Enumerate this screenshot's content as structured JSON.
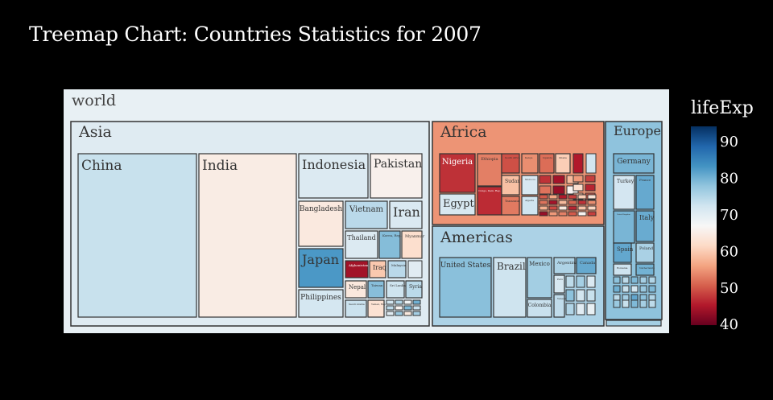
{
  "title": "Treemap Chart: Countries Statistics for 2007",
  "colorbar": {
    "title": "lifeExp",
    "ticks": [
      40,
      50,
      60,
      70,
      80,
      90
    ],
    "range": [
      39.6,
      94
    ],
    "scale": [
      "#67001f",
      "#b2182b",
      "#d6604d",
      "#f4a582",
      "#fddbc7",
      "#f7f7f7",
      "#d1e5f0",
      "#92c5de",
      "#4393c3",
      "#2166ac",
      "#053061"
    ]
  },
  "chart_data": {
    "type": "treemap",
    "root": {
      "name": "world",
      "value": 68.9
    },
    "continents": [
      {
        "name": "Asia",
        "value": 70.3
      },
      {
        "name": "Africa",
        "value": 54.6
      },
      {
        "name": "Americas",
        "value": 75.4
      },
      {
        "name": "Europe",
        "value": 77.9
      }
    ],
    "countries": [
      {
        "name": "China",
        "continent": "Asia",
        "value": 73
      },
      {
        "name": "India",
        "continent": "Asia",
        "value": 64.7
      },
      {
        "name": "Indonesia",
        "continent": "Asia",
        "value": 70.7
      },
      {
        "name": "Pakistan",
        "continent": "Asia",
        "value": 65.5
      },
      {
        "name": "Bangladesh",
        "continent": "Asia",
        "value": 64.1
      },
      {
        "name": "Vietnam",
        "continent": "Asia",
        "value": 74.2
      },
      {
        "name": "Iran",
        "continent": "Asia",
        "value": 71
      },
      {
        "name": "Thailand",
        "continent": "Asia",
        "value": 70.6
      },
      {
        "name": "Korea, Rep.",
        "continent": "Asia",
        "value": 78.6
      },
      {
        "name": "Myanmar",
        "continent": "Asia",
        "value": 62.1
      },
      {
        "name": "Japan",
        "continent": "Asia",
        "value": 82.6
      },
      {
        "name": "Afghanistan",
        "continent": "Asia",
        "value": 43.8
      },
      {
        "name": "Iraq",
        "continent": "Asia",
        "value": 59.5
      },
      {
        "name": "Malaysia",
        "continent": "Asia",
        "value": 74.2
      },
      {
        "name": "Nepal",
        "continent": "Asia",
        "value": 63.8
      },
      {
        "name": "Taiwan",
        "continent": "Asia",
        "value": 78.4
      },
      {
        "name": "Sri Lanka",
        "continent": "Asia",
        "value": 72.4
      },
      {
        "name": "Syria",
        "continent": "Asia",
        "value": 74.1
      },
      {
        "name": "Philippines",
        "continent": "Asia",
        "value": 71.7
      },
      {
        "name": "Saudi Arabia",
        "continent": "Asia",
        "value": 72.8
      },
      {
        "name": "Yemen, Rep.",
        "continent": "Asia",
        "value": 62.7
      },
      {
        "name": "Nigeria",
        "continent": "Africa",
        "value": 46.9
      },
      {
        "name": "Egypt",
        "continent": "Africa",
        "value": 71.3
      },
      {
        "name": "Ethiopia",
        "continent": "Africa",
        "value": 52.9
      },
      {
        "name": "Congo, Dem. Rep.",
        "continent": "Africa",
        "value": 46.5
      },
      {
        "name": "South Africa",
        "continent": "Africa",
        "value": 49.3
      },
      {
        "name": "Sudan",
        "continent": "Africa",
        "value": 58.6
      },
      {
        "name": "Tanzania",
        "continent": "Africa",
        "value": 52.5
      },
      {
        "name": "Kenya",
        "continent": "Africa",
        "value": 54.1
      },
      {
        "name": "Morocco",
        "continent": "Africa",
        "value": 71.2
      },
      {
        "name": "Algeria",
        "continent": "Africa",
        "value": 72.3
      },
      {
        "name": "Uganda",
        "continent": "Africa",
        "value": 51.5
      },
      {
        "name": "Ghana",
        "continent": "Africa",
        "value": 60
      },
      {
        "name": "United States",
        "continent": "Americas",
        "value": 78.2
      },
      {
        "name": "Brazil",
        "continent": "Americas",
        "value": 72.4
      },
      {
        "name": "Mexico",
        "continent": "Americas",
        "value": 76.2
      },
      {
        "name": "Colombia",
        "continent": "Americas",
        "value": 72.9
      },
      {
        "name": "Argentina",
        "continent": "Americas",
        "value": 75.3
      },
      {
        "name": "Canada",
        "continent": "Americas",
        "value": 80.7
      },
      {
        "name": "Peru",
        "continent": "Americas",
        "value": 71.4
      },
      {
        "name": "Venezuela",
        "continent": "Americas",
        "value": 73.7
      },
      {
        "name": "Germany",
        "continent": "Europe",
        "value": 79.4
      },
      {
        "name": "Turkey",
        "continent": "Europe",
        "value": 71.8
      },
      {
        "name": "France",
        "continent": "Europe",
        "value": 80.7
      },
      {
        "name": "United Kingdom",
        "continent": "Europe",
        "value": 79.4
      },
      {
        "name": "Italy",
        "continent": "Europe",
        "value": 80.5
      },
      {
        "name": "Spain",
        "continent": "Europe",
        "value": 80.9
      },
      {
        "name": "Poland",
        "continent": "Europe",
        "value": 75.6
      },
      {
        "name": "Romania",
        "continent": "Europe",
        "value": 72.5
      },
      {
        "name": "Netherlands",
        "continent": "Europe",
        "value": 79.8
      }
    ]
  }
}
